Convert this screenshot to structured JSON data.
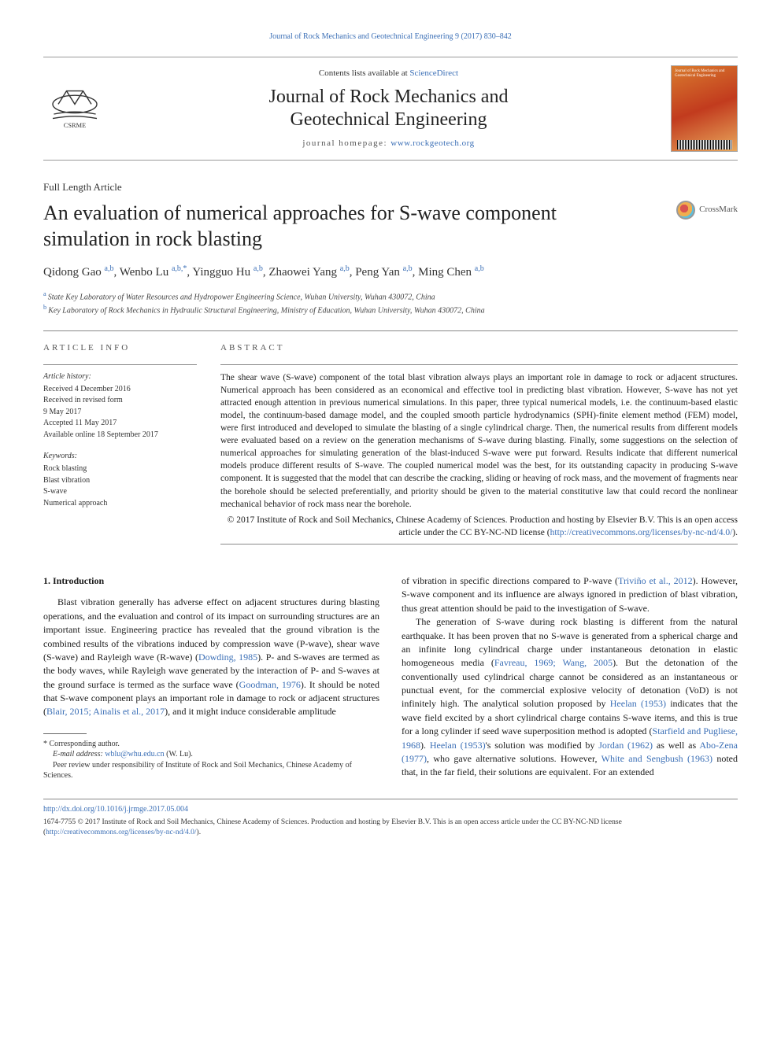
{
  "citation": "Journal of Rock Mechanics and Geotechnical Engineering 9 (2017) 830–842",
  "masthead": {
    "contents_prefix": "Contents lists available at ",
    "contents_link": "ScienceDirect",
    "journal_title_line1": "Journal of Rock Mechanics and",
    "journal_title_line2": "Geotechnical Engineering",
    "homepage_prefix": "journal homepage: ",
    "homepage_link": "www.rockgeotech.org",
    "logo_label": "CSRME",
    "cover_text": "Journal of Rock Mechanics and Geotechnical Engineering"
  },
  "article_type": "Full Length Article",
  "crossmark_label": "CrossMark",
  "title": "An evaluation of numerical approaches for S-wave component simulation in rock blasting",
  "authors_html": [
    {
      "name": "Qidong Gao",
      "sup": "a,b"
    },
    {
      "name": "Wenbo Lu",
      "sup": "a,b,*"
    },
    {
      "name": "Yingguo Hu",
      "sup": "a,b"
    },
    {
      "name": "Zhaowei Yang",
      "sup": "a,b"
    },
    {
      "name": "Peng Yan",
      "sup": "a,b"
    },
    {
      "name": "Ming Chen",
      "sup": "a,b"
    }
  ],
  "affiliations": [
    {
      "sup": "a",
      "text": "State Key Laboratory of Water Resources and Hydropower Engineering Science, Wuhan University, Wuhan 430072, China"
    },
    {
      "sup": "b",
      "text": "Key Laboratory of Rock Mechanics in Hydraulic Structural Engineering, Ministry of Education, Wuhan University, Wuhan 430072, China"
    }
  ],
  "info": {
    "heading": "ARTICLE INFO",
    "history_label": "Article history:",
    "history": [
      "Received 4 December 2016",
      "Received in revised form",
      "9 May 2017",
      "Accepted 11 May 2017",
      "Available online 18 September 2017"
    ],
    "keywords_label": "Keywords:",
    "keywords": [
      "Rock blasting",
      "Blast vibration",
      "S-wave",
      "Numerical approach"
    ]
  },
  "abstract": {
    "heading": "ABSTRACT",
    "text": "The shear wave (S-wave) component of the total blast vibration always plays an important role in damage to rock or adjacent structures. Numerical approach has been considered as an economical and effective tool in predicting blast vibration. However, S-wave has not yet attracted enough attention in previous numerical simulations. In this paper, three typical numerical models, i.e. the continuum-based elastic model, the continuum-based damage model, and the coupled smooth particle hydrodynamics (SPH)-finite element method (FEM) model, were first introduced and developed to simulate the blasting of a single cylindrical charge. Then, the numerical results from different models were evaluated based on a review on the generation mechanisms of S-wave during blasting. Finally, some suggestions on the selection of numerical approaches for simulating generation of the blast-induced S-wave were put forward. Results indicate that different numerical models produce different results of S-wave. The coupled numerical model was the best, for its outstanding capacity in producing S-wave component. It is suggested that the model that can describe the cracking, sliding or heaving of rock mass, and the movement of fragments near the borehole should be selected preferentially, and priority should be given to the material constitutive law that could record the nonlinear mechanical behavior of rock mass near the borehole.",
    "copyright": "© 2017 Institute of Rock and Soil Mechanics, Chinese Academy of Sciences. Production and hosting by Elsevier B.V. This is an open access article under the CC BY-NC-ND license (",
    "license_link": "http://creativecommons.org/licenses/by-nc-nd/4.0/",
    "copyright_close": ")."
  },
  "body": {
    "section_heading": "1. Introduction",
    "col1_p1_a": "Blast vibration generally has adverse effect on adjacent structures during blasting operations, and the evaluation and control of its impact on surrounding structures are an important issue. Engineering practice has revealed that the ground vibration is the combined results of the vibrations induced by compression wave (P-wave), shear wave (S-wave) and Rayleigh wave (R-wave) (",
    "col1_cite1": "Dowding, 1985",
    "col1_p1_b": "). P- and S-waves are termed as the body waves, while Rayleigh wave generated by the interaction of P- and S-waves at the ground surface is termed as the surface wave (",
    "col1_cite2": "Goodman, 1976",
    "col1_p1_c": "). It should be noted that S-wave component plays an important role in damage to rock or adjacent structures (",
    "col1_cite3": "Blair, 2015; Ainalis et al., 2017",
    "col1_p1_d": "), and it might induce considerable amplitude",
    "col2_p1_a": "of vibration in specific directions compared to P-wave (",
    "col2_cite1": "Triviño et al., 2012",
    "col2_p1_b": "). However, S-wave component and its influence are always ignored in prediction of blast vibration, thus great attention should be paid to the investigation of S-wave.",
    "col2_p2_a": "The generation of S-wave during rock blasting is different from the natural earthquake. It has been proven that no S-wave is generated from a spherical charge and an infinite long cylindrical charge under instantaneous detonation in elastic homogeneous media (",
    "col2_cite2": "Favreau, 1969; Wang, 2005",
    "col2_p2_b": "). But the detonation of the conventionally used cylindrical charge cannot be considered as an instantaneous or punctual event, for the commercial explosive velocity of detonation (VoD) is not infinitely high. The analytical solution proposed by ",
    "col2_cite3": "Heelan (1953)",
    "col2_p2_c": " indicates that the wave field excited by a short cylindrical charge contains S-wave items, and this is true for a long cylinder if seed wave superposition method is adopted (",
    "col2_cite4": "Starfield and Pugliese, 1968",
    "col2_p2_d": "). ",
    "col2_cite5": "Heelan (1953)",
    "col2_p2_e": "'s solution was modified by ",
    "col2_cite6": "Jordan (1962)",
    "col2_p2_f": " as well as ",
    "col2_cite7": "Abo-Zena (1977)",
    "col2_p2_g": ", who gave alternative solutions. However, ",
    "col2_cite8": "White and Sengbush (1963)",
    "col2_p2_h": " noted that, in the far field, their solutions are equivalent. For an extended"
  },
  "footnotes": {
    "corresponding": "* Corresponding author.",
    "email_label": "E-mail address: ",
    "email": "wblu@whu.edu.cn",
    "email_suffix": " (W. Lu).",
    "peer_review": "Peer review under responsibility of Institute of Rock and Soil Mechanics, Chinese Academy of Sciences."
  },
  "bottom": {
    "doi": "http://dx.doi.org/10.1016/j.jrmge.2017.05.004",
    "license_a": "1674-7755 © 2017 Institute of Rock and Soil Mechanics, Chinese Academy of Sciences. Production and hosting by Elsevier B.V. This is an open access article under the CC BY-NC-ND license (",
    "license_link": "http://creativecommons.org/licenses/by-nc-nd/4.0/",
    "license_b": ")."
  },
  "colors": {
    "link": "#3b6fb6",
    "text": "#1a1a1a",
    "rule": "#888888"
  }
}
